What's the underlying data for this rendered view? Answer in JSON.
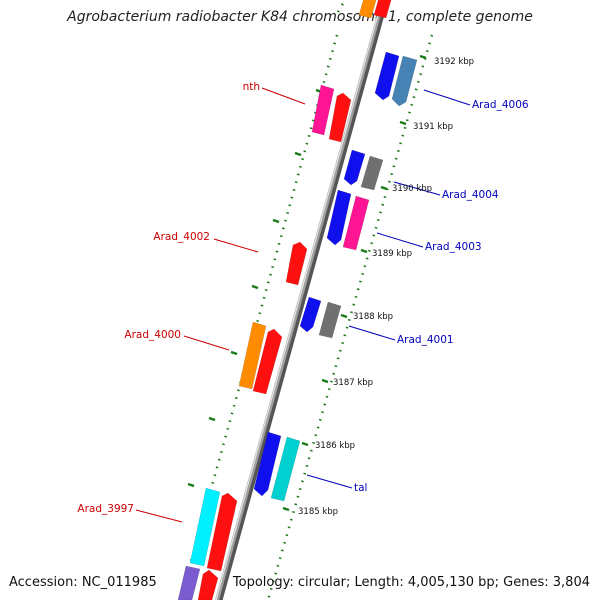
{
  "title": "Agrobacterium radiobacter K84 chromosome 1, complete genome",
  "footer": {
    "accession": "Accession: NC_011985",
    "stats": "Topology: circular; Length: 4,005,130 bp; Genes: 3,804"
  },
  "colors": {
    "backbone": "#8a8a8a",
    "tick": "#1a7a1a",
    "left_label": "#cc0000",
    "right_label": "#0000bb"
  },
  "kbp_labels": [
    "3192 kbp",
    "3191 kbp",
    "3190 kbp",
    "3189 kbp",
    "3188 kbp",
    "3187 kbp",
    "3186 kbp",
    "3185 kbp"
  ],
  "gene_labels": {
    "left": [
      "nth",
      "Arad_4002",
      "Arad_4000",
      "Arad_3997"
    ],
    "right": [
      "Arad_4006",
      "Arad_4004",
      "Arad_4003",
      "Arad_4001",
      "tal"
    ]
  },
  "gene_colors": {
    "red": "#ff1010",
    "magenta": "#ff1493",
    "blue": "#1010ee",
    "steelblue": "#4682b4",
    "grey": "#707070",
    "orange": "#ff8c00",
    "cyan": "#00d0d0",
    "brightcyan": "#00f0ff",
    "purple": "#7a5cd0"
  }
}
